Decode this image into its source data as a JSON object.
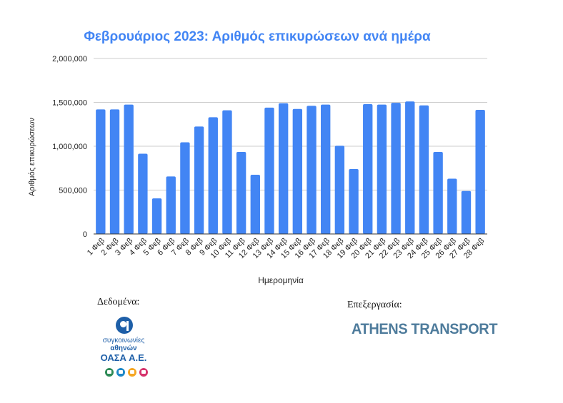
{
  "chart_data": {
    "type": "bar",
    "title": "Φεβρουάριος 2023: Αριθμός επικυρώσεων ανά ημέρα",
    "xlabel": "Ημερομηνία",
    "ylabel": "Αριθμός επικυρώσεων",
    "ylim": [
      0,
      2000000
    ],
    "yticks": [
      0,
      500000,
      1000000,
      1500000,
      2000000
    ],
    "ytick_labels": [
      "0",
      "500,000",
      "1,000,000",
      "1,500,000",
      "2,000,000"
    ],
    "grid": true,
    "legend": "none",
    "bar_color": "#4285f4",
    "categories": [
      "1 Φεβ",
      "2 Φεβ",
      "3 Φεβ",
      "4 Φεβ",
      "5 Φεβ",
      "6 Φεβ",
      "7 Φεβ",
      "8 Φεβ",
      "9 Φεβ",
      "10 Φεβ",
      "11 Φεβ",
      "12 Φεβ",
      "13 Φεβ",
      "14 Φεβ",
      "15 Φεβ",
      "16 Φεβ",
      "17 Φεβ",
      "18 Φεβ",
      "19 Φεβ",
      "20 Φεβ",
      "21 Φεβ",
      "22 Φεβ",
      "23 Φεβ",
      "24 Φεβ",
      "25 Φεβ",
      "26 Φεβ",
      "27 Φεβ",
      "28 Φεβ"
    ],
    "values": [
      1420000,
      1420000,
      1475000,
      915000,
      405000,
      655000,
      1045000,
      1225000,
      1330000,
      1410000,
      935000,
      675000,
      1440000,
      1490000,
      1425000,
      1460000,
      1475000,
      1005000,
      740000,
      1480000,
      1475000,
      1495000,
      1510000,
      1465000,
      935000,
      630000,
      490000,
      1415000
    ]
  },
  "credits": {
    "data_label": "Δεδομένα:",
    "processing_label": "Επεξεργασία:",
    "oasa_line1": "συγκοινωνίες",
    "oasa_line2": "αθηνών",
    "oasa_line3": "ΟΑΣΑ Α.Ε.",
    "athens_transport": "ATHENS TRANSPORT"
  },
  "colors": {
    "title": "#4285f4",
    "oasa_blue": "#1e5fa8",
    "mode_colors": [
      "#2e8b57",
      "#1e88c8",
      "#f5a623",
      "#d6336c"
    ],
    "athens_transport": "#4f7c9c"
  }
}
